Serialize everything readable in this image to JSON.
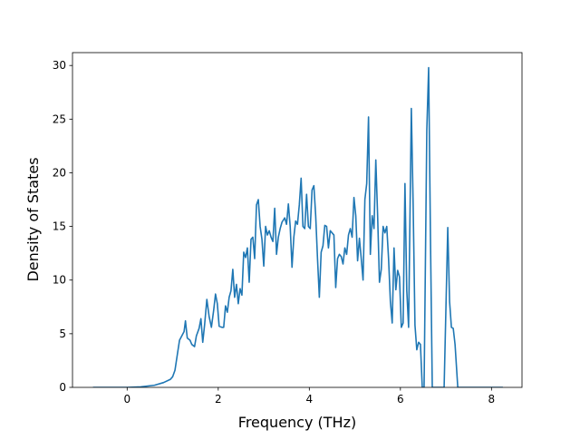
{
  "chart_data": {
    "type": "line",
    "title": "",
    "xlabel": "Frequency (THz)",
    "ylabel": "Density of States",
    "xlim": [
      -1.2,
      8.67
    ],
    "ylim": [
      0,
      31.2
    ],
    "x_ticks": [
      0,
      2,
      4,
      6,
      8
    ],
    "y_ticks": [
      0,
      5,
      10,
      15,
      20,
      25,
      30
    ],
    "grid": false,
    "legend": "none",
    "series": [
      {
        "color": "#1f77b4",
        "points": [
          [
            -0.75,
            0.0
          ],
          [
            0.0,
            0.0
          ],
          [
            0.3,
            0.05
          ],
          [
            0.6,
            0.2
          ],
          [
            0.8,
            0.45
          ],
          [
            0.95,
            0.75
          ],
          [
            1.0,
            1.0
          ],
          [
            1.05,
            1.6
          ],
          [
            1.1,
            3.0
          ],
          [
            1.15,
            4.4
          ],
          [
            1.2,
            4.8
          ],
          [
            1.25,
            5.2
          ],
          [
            1.28,
            6.2
          ],
          [
            1.32,
            4.6
          ],
          [
            1.38,
            4.4
          ],
          [
            1.42,
            4.0
          ],
          [
            1.48,
            3.8
          ],
          [
            1.52,
            4.8
          ],
          [
            1.58,
            5.5
          ],
          [
            1.62,
            6.4
          ],
          [
            1.66,
            4.2
          ],
          [
            1.7,
            5.8
          ],
          [
            1.75,
            8.2
          ],
          [
            1.8,
            6.6
          ],
          [
            1.85,
            5.6
          ],
          [
            1.9,
            7.2
          ],
          [
            1.94,
            8.7
          ],
          [
            1.98,
            7.8
          ],
          [
            2.02,
            5.7
          ],
          [
            2.08,
            5.6
          ],
          [
            2.12,
            5.6
          ],
          [
            2.16,
            7.6
          ],
          [
            2.2,
            7.0
          ],
          [
            2.24,
            8.4
          ],
          [
            2.28,
            9.0
          ],
          [
            2.32,
            11.0
          ],
          [
            2.36,
            8.4
          ],
          [
            2.4,
            9.6
          ],
          [
            2.44,
            7.8
          ],
          [
            2.48,
            9.2
          ],
          [
            2.52,
            8.6
          ],
          [
            2.56,
            12.6
          ],
          [
            2.6,
            12.1
          ],
          [
            2.64,
            13.0
          ],
          [
            2.68,
            9.8
          ],
          [
            2.72,
            13.8
          ],
          [
            2.76,
            14.0
          ],
          [
            2.8,
            12.0
          ],
          [
            2.84,
            17.0
          ],
          [
            2.88,
            17.5
          ],
          [
            2.92,
            15.0
          ],
          [
            2.96,
            13.8
          ],
          [
            3.0,
            11.3
          ],
          [
            3.04,
            15.0
          ],
          [
            3.08,
            14.2
          ],
          [
            3.12,
            14.6
          ],
          [
            3.16,
            14.0
          ],
          [
            3.2,
            13.6
          ],
          [
            3.24,
            16.7
          ],
          [
            3.28,
            12.4
          ],
          [
            3.32,
            14.0
          ],
          [
            3.36,
            14.8
          ],
          [
            3.4,
            15.4
          ],
          [
            3.46,
            15.8
          ],
          [
            3.5,
            15.2
          ],
          [
            3.54,
            17.1
          ],
          [
            3.58,
            15.0
          ],
          [
            3.62,
            11.2
          ],
          [
            3.66,
            14.0
          ],
          [
            3.7,
            15.5
          ],
          [
            3.74,
            15.2
          ],
          [
            3.78,
            17.0
          ],
          [
            3.82,
            19.5
          ],
          [
            3.86,
            15.0
          ],
          [
            3.9,
            14.8
          ],
          [
            3.94,
            18.0
          ],
          [
            3.98,
            15.0
          ],
          [
            4.02,
            14.8
          ],
          [
            4.06,
            18.4
          ],
          [
            4.1,
            18.8
          ],
          [
            4.14,
            16.0
          ],
          [
            4.18,
            12.0
          ],
          [
            4.22,
            8.4
          ],
          [
            4.26,
            12.6
          ],
          [
            4.3,
            13.2
          ],
          [
            4.34,
            15.1
          ],
          [
            4.38,
            15.0
          ],
          [
            4.42,
            13.0
          ],
          [
            4.46,
            14.6
          ],
          [
            4.5,
            14.4
          ],
          [
            4.54,
            14.2
          ],
          [
            4.58,
            9.3
          ],
          [
            4.62,
            12.0
          ],
          [
            4.66,
            12.4
          ],
          [
            4.7,
            12.2
          ],
          [
            4.74,
            11.5
          ],
          [
            4.78,
            13.0
          ],
          [
            4.82,
            12.4
          ],
          [
            4.86,
            14.2
          ],
          [
            4.9,
            14.8
          ],
          [
            4.94,
            14.0
          ],
          [
            4.98,
            17.7
          ],
          [
            5.02,
            16.0
          ],
          [
            5.06,
            11.8
          ],
          [
            5.1,
            13.9
          ],
          [
            5.14,
            12.0
          ],
          [
            5.18,
            10.0
          ],
          [
            5.22,
            17.5
          ],
          [
            5.26,
            19.0
          ],
          [
            5.3,
            25.2
          ],
          [
            5.34,
            12.4
          ],
          [
            5.38,
            16.0
          ],
          [
            5.42,
            14.8
          ],
          [
            5.46,
            21.2
          ],
          [
            5.5,
            16.0
          ],
          [
            5.54,
            9.8
          ],
          [
            5.58,
            11.0
          ],
          [
            5.62,
            15.0
          ],
          [
            5.66,
            14.4
          ],
          [
            5.7,
            15.0
          ],
          [
            5.74,
            12.0
          ],
          [
            5.78,
            8.0
          ],
          [
            5.82,
            6.0
          ],
          [
            5.86,
            13.0
          ],
          [
            5.9,
            9.1
          ],
          [
            5.94,
            10.9
          ],
          [
            5.98,
            10.3
          ],
          [
            6.02,
            5.6
          ],
          [
            6.06,
            6.0
          ],
          [
            6.1,
            19.0
          ],
          [
            6.14,
            9.0
          ],
          [
            6.18,
            5.6
          ],
          [
            6.24,
            26.0
          ],
          [
            6.28,
            17.0
          ],
          [
            6.32,
            5.8
          ],
          [
            6.36,
            3.5
          ],
          [
            6.4,
            4.2
          ],
          [
            6.44,
            4.0
          ],
          [
            6.48,
            0.0
          ],
          [
            6.52,
            0.0
          ],
          [
            6.58,
            24.0
          ],
          [
            6.62,
            29.8
          ],
          [
            6.66,
            14.0
          ],
          [
            6.7,
            0.0
          ],
          [
            6.96,
            0.0
          ],
          [
            7.04,
            14.9
          ],
          [
            7.08,
            8.0
          ],
          [
            7.12,
            5.6
          ],
          [
            7.16,
            5.5
          ],
          [
            7.2,
            4.0
          ],
          [
            7.26,
            0.0
          ],
          [
            8.25,
            0.0
          ]
        ]
      }
    ]
  }
}
